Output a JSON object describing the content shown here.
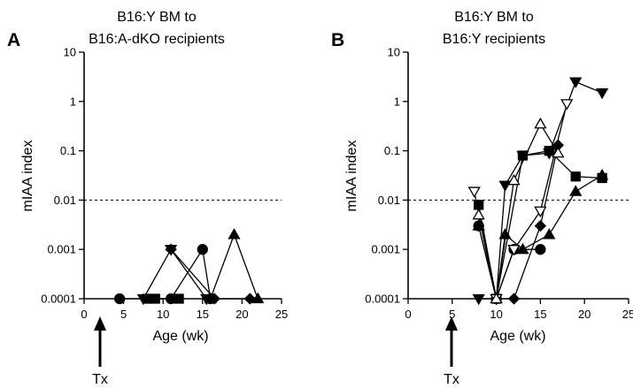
{
  "chart_data": [
    {
      "panel_label": "A",
      "type": "line",
      "title_lines": [
        "B16:Y BM to",
        "B16:A-dKO recipients"
      ],
      "xlabel": "Age (wk)",
      "ylabel": "mIAA index",
      "xlim": [
        0,
        25
      ],
      "ylim": [
        0.0001,
        10
      ],
      "yscale": "log",
      "xticks": [
        0,
        5,
        10,
        15,
        20,
        25
      ],
      "yticks": [
        {
          "value": 0.0001,
          "label": "0.0001"
        },
        {
          "value": 0.001,
          "label": "0.001"
        },
        {
          "value": 0.01,
          "label": "0.01"
        },
        {
          "value": 0.1,
          "label": "0.1"
        },
        {
          "value": 1,
          "label": "1"
        },
        {
          "value": 10,
          "label": "10"
        }
      ],
      "reference_line": 0.01,
      "annotation": {
        "label": "Tx",
        "x": 4.5
      },
      "series": [
        {
          "marker": "circle",
          "filled": true,
          "x": [
            4.5,
            11,
            15,
            16
          ],
          "y": [
            0.0001,
            0.0001,
            0.001,
            0.0001
          ]
        },
        {
          "marker": "square",
          "filled": true,
          "x": [
            8,
            9,
            12
          ],
          "y": [
            0.0001,
            0.0001,
            0.0001
          ]
        },
        {
          "marker": "triangle-down",
          "filled": true,
          "x": [
            7.5,
            11,
            15.5
          ],
          "y": [
            0.0001,
            0.001,
            0.0001
          ]
        },
        {
          "marker": "diamond",
          "filled": true,
          "x": [
            11,
            16.5,
            21
          ],
          "y": [
            0.001,
            0.0001,
            0.0001
          ]
        },
        {
          "marker": "triangle-up",
          "filled": true,
          "x": [
            16,
            19,
            22
          ],
          "y": [
            0.0001,
            0.002,
            0.0001
          ]
        }
      ]
    },
    {
      "panel_label": "B",
      "type": "line",
      "title_lines": [
        "B16:Y BM to",
        "B16:Y recipients"
      ],
      "xlabel": "Age (wk)",
      "ylabel": "mIAA index",
      "xlim": [
        0,
        25
      ],
      "ylim": [
        0.0001,
        10
      ],
      "yscale": "log",
      "xticks": [
        0,
        5,
        10,
        15,
        20,
        25
      ],
      "yticks": [
        {
          "value": 0.0001,
          "label": "0.0001"
        },
        {
          "value": 0.001,
          "label": "0.001"
        },
        {
          "value": 0.01,
          "label": "0.01"
        },
        {
          "value": 0.1,
          "label": "0.1"
        },
        {
          "value": 1,
          "label": "1"
        },
        {
          "value": 10,
          "label": "10"
        }
      ],
      "reference_line": 0.01,
      "annotation": {
        "label": "Tx",
        "x": 4.5
      },
      "series": [
        {
          "marker": "circle",
          "filled": true,
          "x": [
            8,
            10,
            12,
            15
          ],
          "y": [
            0.003,
            0.0001,
            0.001,
            0.001
          ]
        },
        {
          "marker": "square",
          "filled": true,
          "x": [
            8,
            10,
            13,
            16,
            19,
            22
          ],
          "y": [
            0.008,
            0.0001,
            0.08,
            0.1,
            0.03,
            0.028
          ]
        },
        {
          "marker": "triangle-down",
          "filled": true,
          "x": [
            8,
            10,
            11,
            13,
            16,
            19,
            22
          ],
          "y": [
            0.0001,
            0.0001,
            0.02,
            0.08,
            0.09,
            2.5,
            1.5
          ]
        },
        {
          "marker": "diamond",
          "filled": true,
          "x": [
            10,
            12,
            15,
            17
          ],
          "y": [
            0.0001,
            0.0001,
            0.003,
            0.13
          ]
        },
        {
          "marker": "triangle-up",
          "filled": true,
          "x": [
            8,
            10,
            11,
            13,
            16,
            19,
            22
          ],
          "y": [
            0.003,
            0.0001,
            0.002,
            0.001,
            0.002,
            0.015,
            0.032
          ]
        },
        {
          "marker": "triangle-down",
          "filled": false,
          "x": [
            7.5,
            10,
            12,
            15,
            18
          ],
          "y": [
            0.015,
            0.0001,
            0.001,
            0.006,
            0.9
          ]
        },
        {
          "marker": "triangle-up",
          "filled": false,
          "x": [
            8,
            10,
            12,
            15,
            17
          ],
          "y": [
            0.005,
            0.0001,
            0.025,
            0.35,
            0.09
          ]
        }
      ]
    }
  ]
}
